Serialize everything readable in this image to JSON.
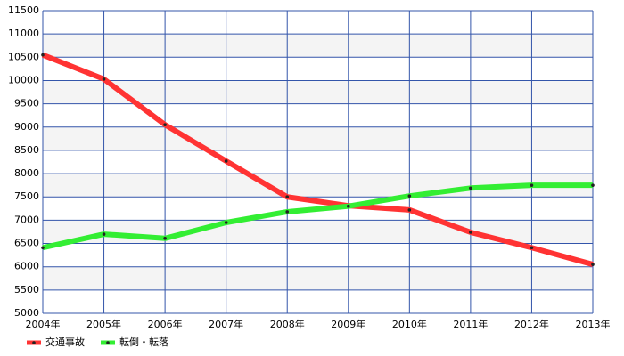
{
  "chart_data": {
    "type": "line",
    "categories": [
      "2004年",
      "2005年",
      "2006年",
      "2007年",
      "2008年",
      "2009年",
      "2010年",
      "2011年",
      "2012年",
      "2013年"
    ],
    "series": [
      {
        "name": "交通事故",
        "color": "#ff3333",
        "values": [
          10550,
          10030,
          9050,
          8270,
          7500,
          7310,
          7220,
          6740,
          6410,
          6050
        ]
      },
      {
        "name": "転倒・転落",
        "color": "#33ee33",
        "values": [
          6410,
          6700,
          6610,
          6950,
          7180,
          7300,
          7520,
          7690,
          7750,
          7750
        ]
      }
    ],
    "ylim": [
      5000,
      11500
    ],
    "yticks": [
      5000,
      5500,
      6000,
      6500,
      7000,
      7500,
      8000,
      8500,
      9000,
      9500,
      10000,
      10500,
      11000,
      11500
    ],
    "grid": true,
    "legend": "bottom-left"
  }
}
